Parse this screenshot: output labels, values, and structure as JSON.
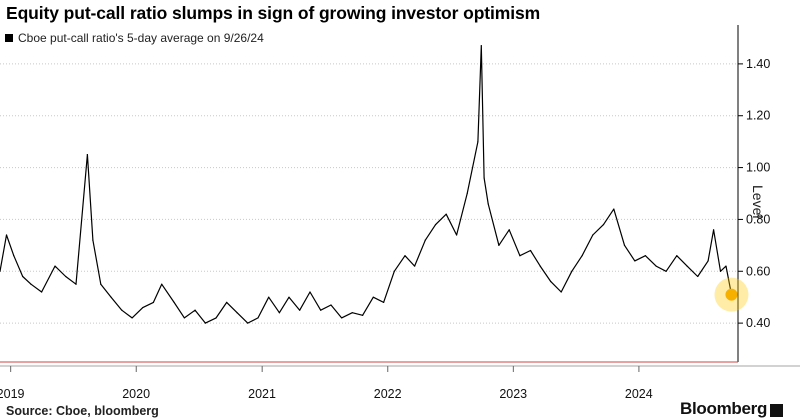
{
  "chart_data": {
    "type": "line",
    "title": "Equity put-call ratio slumps in sign of growing investor optimism",
    "ylabel": "Level",
    "ylim": [
      0.25,
      1.55
    ],
    "yticks": [
      0.4,
      0.6,
      0.8,
      1.0,
      1.2,
      1.4
    ],
    "ytick_labels": [
      "0.40",
      "0.60",
      "0.80",
      "1.00",
      "1.20",
      "1.40"
    ],
    "xlim": [
      "2018-12-01",
      "2024-10-15"
    ],
    "xticks": [
      "2019-01-01",
      "2020-01-01",
      "2021-01-01",
      "2022-01-01",
      "2023-01-01",
      "2024-01-01"
    ],
    "xtick_labels": [
      "2019",
      "2020",
      "2021",
      "2022",
      "2023",
      "2024"
    ],
    "grid": true,
    "legend": "top-left",
    "series": [
      {
        "name": "Cboe put-call ratio's 5-day average on 9/26/24",
        "color": "#000000",
        "points": [
          [
            "2018-12-01",
            0.6
          ],
          [
            "2018-12-20",
            0.74
          ],
          [
            "2019-01-10",
            0.66
          ],
          [
            "2019-02-05",
            0.58
          ],
          [
            "2019-03-01",
            0.55
          ],
          [
            "2019-04-01",
            0.52
          ],
          [
            "2019-05-10",
            0.62
          ],
          [
            "2019-06-10",
            0.58
          ],
          [
            "2019-07-10",
            0.55
          ],
          [
            "2019-08-12",
            1.05
          ],
          [
            "2019-08-28",
            0.72
          ],
          [
            "2019-09-20",
            0.55
          ],
          [
            "2019-10-20",
            0.5
          ],
          [
            "2019-11-20",
            0.45
          ],
          [
            "2019-12-20",
            0.42
          ],
          [
            "2020-01-20",
            0.46
          ],
          [
            "2020-02-20",
            0.48
          ],
          [
            "2020-03-15",
            0.55
          ],
          [
            "2020-04-20",
            0.48
          ],
          [
            "2020-05-20",
            0.42
          ],
          [
            "2020-06-20",
            0.45
          ],
          [
            "2020-07-20",
            0.4
          ],
          [
            "2020-08-20",
            0.42
          ],
          [
            "2020-09-20",
            0.48
          ],
          [
            "2020-10-20",
            0.44
          ],
          [
            "2020-11-20",
            0.4
          ],
          [
            "2020-12-20",
            0.42
          ],
          [
            "2021-01-20",
            0.5
          ],
          [
            "2021-02-20",
            0.44
          ],
          [
            "2021-03-20",
            0.5
          ],
          [
            "2021-04-20",
            0.45
          ],
          [
            "2021-05-20",
            0.52
          ],
          [
            "2021-06-20",
            0.45
          ],
          [
            "2021-07-20",
            0.47
          ],
          [
            "2021-08-20",
            0.42
          ],
          [
            "2021-09-20",
            0.44
          ],
          [
            "2021-10-20",
            0.43
          ],
          [
            "2021-11-20",
            0.5
          ],
          [
            "2021-12-20",
            0.48
          ],
          [
            "2022-01-20",
            0.6
          ],
          [
            "2022-02-20",
            0.66
          ],
          [
            "2022-03-20",
            0.62
          ],
          [
            "2022-04-20",
            0.72
          ],
          [
            "2022-05-20",
            0.78
          ],
          [
            "2022-06-20",
            0.82
          ],
          [
            "2022-07-20",
            0.74
          ],
          [
            "2022-08-20",
            0.9
          ],
          [
            "2022-09-20",
            1.1
          ],
          [
            "2022-09-30",
            1.47
          ],
          [
            "2022-10-08",
            0.96
          ],
          [
            "2022-10-20",
            0.86
          ],
          [
            "2022-11-20",
            0.7
          ],
          [
            "2022-12-20",
            0.76
          ],
          [
            "2023-01-20",
            0.66
          ],
          [
            "2023-02-20",
            0.68
          ],
          [
            "2023-03-20",
            0.62
          ],
          [
            "2023-04-20",
            0.56
          ],
          [
            "2023-05-20",
            0.52
          ],
          [
            "2023-06-20",
            0.6
          ],
          [
            "2023-07-20",
            0.66
          ],
          [
            "2023-08-20",
            0.74
          ],
          [
            "2023-09-20",
            0.78
          ],
          [
            "2023-10-20",
            0.84
          ],
          [
            "2023-11-20",
            0.7
          ],
          [
            "2023-12-20",
            0.64
          ],
          [
            "2024-01-20",
            0.66
          ],
          [
            "2024-02-20",
            0.62
          ],
          [
            "2024-03-20",
            0.6
          ],
          [
            "2024-04-20",
            0.66
          ],
          [
            "2024-05-20",
            0.62
          ],
          [
            "2024-06-20",
            0.58
          ],
          [
            "2024-07-20",
            0.64
          ],
          [
            "2024-08-05",
            0.76
          ],
          [
            "2024-08-25",
            0.6
          ],
          [
            "2024-09-10",
            0.62
          ],
          [
            "2024-09-26",
            0.51
          ]
        ]
      }
    ],
    "highlight": {
      "date": "2024-09-26",
      "value": 0.51,
      "color": "#FFC800"
    }
  },
  "source": "Source: Cboe, bloomberg",
  "brand": "Bloomberg"
}
